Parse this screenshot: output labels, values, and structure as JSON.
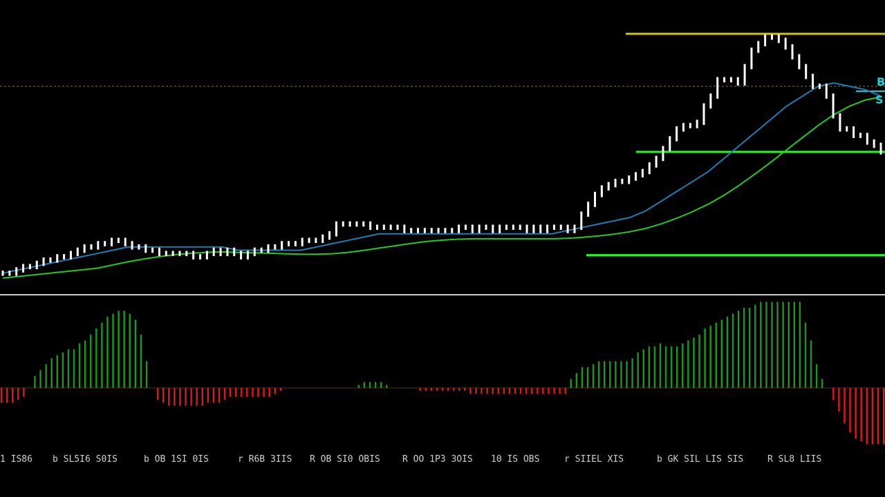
{
  "chart_data": {
    "type": "candlestick_with_macd_histogram",
    "grid": false,
    "colors": {
      "background": "#000000",
      "candle": "#ffffff",
      "ma_fast": "#1e7fb8",
      "ma_slow": "#1fcc1f",
      "resistance": "#d6c21a",
      "support": "#1aff1a",
      "dotted_level": "#8a7a2a",
      "histogram_positive": "#1a9a1a",
      "histogram_negative": "#e01818",
      "separator": "#cccccc",
      "label": "#19d4dc"
    },
    "price": {
      "close": [
        93,
        93,
        94,
        95,
        95,
        96,
        97,
        97,
        98,
        98,
        99,
        100,
        101,
        101,
        102,
        102,
        103,
        103,
        102,
        101,
        101,
        100,
        100,
        99,
        99,
        99,
        99,
        99,
        98,
        98,
        99,
        100,
        99,
        100,
        99,
        98,
        99,
        100,
        100,
        101,
        101,
        102,
        102,
        102,
        103,
        103,
        103,
        104,
        105,
        108,
        108,
        108,
        108,
        108,
        107,
        107,
        107,
        107,
        107,
        106,
        106,
        106,
        106,
        106,
        106,
        106,
        106,
        107,
        107,
        106,
        107,
        107,
        106,
        107,
        107,
        107,
        107,
        106,
        107,
        106,
        107,
        107,
        107,
        106,
        107,
        111,
        114,
        117,
        119,
        120,
        121,
        121,
        122,
        123,
        124,
        126,
        128,
        131,
        134,
        137,
        138,
        138,
        139,
        144,
        147,
        152,
        152,
        152,
        151,
        156,
        161,
        163,
        165,
        165,
        164,
        162,
        159,
        156,
        153,
        150,
        150,
        147,
        141,
        137,
        137,
        135,
        135,
        133,
        132,
        130
      ],
      "ma_fast": [
        93,
        94,
        95,
        96,
        97,
        98,
        99,
        100,
        101,
        101,
        101,
        101,
        101,
        101,
        101,
        100,
        100,
        100,
        100,
        100,
        101,
        102,
        103,
        104,
        105,
        105,
        105,
        105,
        105,
        105,
        105,
        105,
        105,
        105,
        105,
        105,
        106,
        107,
        108,
        109,
        110,
        112,
        115,
        118,
        121,
        124,
        128,
        132,
        136,
        140,
        144,
        147,
        150,
        151,
        150,
        149,
        147
      ]
    },
    "levels": {
      "resistance": 166,
      "dotted": 150,
      "support_upper": 130,
      "support_lower": 98.5,
      "cyan_marker": 148.5
    },
    "histogram": [
      -5,
      -5,
      -5,
      -4,
      -3,
      0,
      4,
      6,
      8,
      10,
      11,
      12,
      13,
      13,
      15,
      16,
      18,
      20,
      22,
      24,
      25,
      26,
      26,
      25,
      23,
      18,
      9,
      0,
      -4,
      -5,
      -6,
      -6,
      -6,
      -6,
      -6,
      -6,
      -6,
      -5,
      -5,
      -5,
      -4,
      -3,
      -3,
      -3,
      -3,
      -3,
      -3,
      -3,
      -3,
      -2,
      -1,
      0,
      0,
      0,
      0,
      0,
      0,
      0,
      0,
      0,
      0,
      0,
      0,
      0,
      1,
      2,
      2,
      2,
      2,
      1,
      0,
      0,
      0,
      0,
      0,
      -1,
      -1,
      -1,
      -1,
      -1,
      -1,
      -1,
      -1,
      -1,
      -2,
      -2,
      -2,
      -2,
      -2,
      -2,
      -2,
      -2,
      -2,
      -2,
      -2,
      -2,
      -2,
      -2,
      -2,
      -2,
      -2,
      -2,
      3,
      5,
      7,
      7,
      8,
      9,
      9,
      9,
      9,
      9,
      9,
      10,
      12,
      13,
      14,
      14,
      15,
      14,
      14,
      14,
      15,
      16,
      17,
      18,
      20,
      21,
      22,
      23,
      24,
      25,
      26,
      27,
      27,
      28,
      29,
      29,
      29,
      29,
      29,
      29,
      29,
      29,
      22,
      16,
      8,
      3,
      0,
      -4,
      -8,
      -12,
      -15,
      -17,
      -18,
      -19,
      -19,
      -19,
      -19
    ],
    "x_tick_labels": [
      "1 IS86",
      "b SL5I6 S0IS",
      "b OB 1SI 0IS",
      "r R6B 3IIS",
      "R OB SI0 OBIS",
      "R OO 1P3 3OIS",
      "10 IS OBS",
      "r SIIEL XIS",
      "b GK SIL LIS SIS",
      "R SL8 LIIS"
    ],
    "right_labels": [
      "B",
      "S"
    ]
  }
}
